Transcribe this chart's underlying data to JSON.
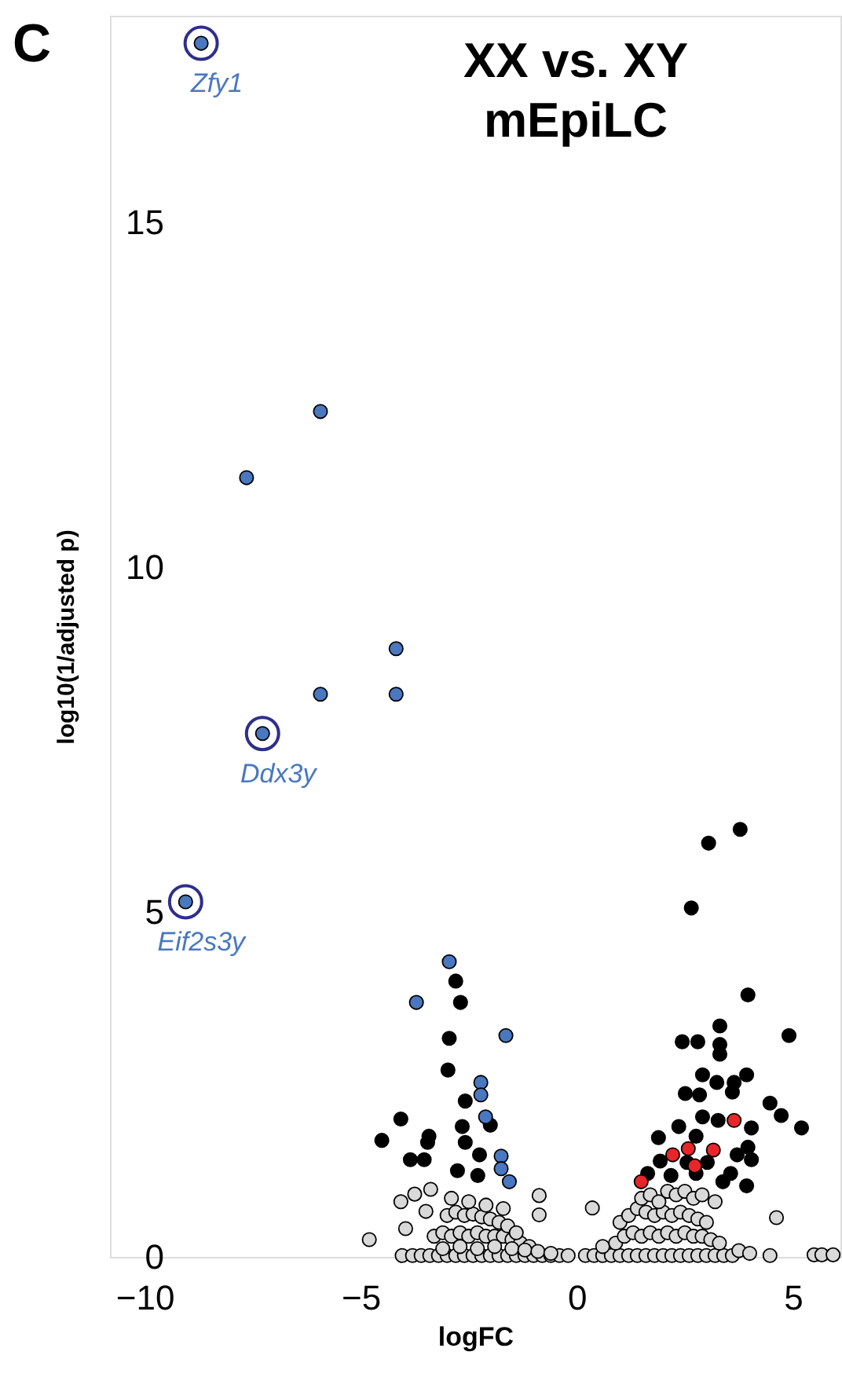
{
  "chart_data": {
    "type": "scatter",
    "title": "XX vs. XY\nmEpiLC",
    "xlabel": "logFC",
    "ylabel": "log10(1/adjusted p)",
    "xlim": [
      -10.8,
      6.1
    ],
    "ylim": [
      0,
      18
    ],
    "xticks": [
      -10,
      -5,
      0,
      5
    ],
    "yticks": [
      0,
      5,
      10,
      15
    ],
    "grid": false,
    "marker": "circle",
    "annotations": [
      "C",
      {
        "text": "Zfy1",
        "x": -8.69,
        "y": 17.6
      },
      {
        "text": "Ddx3y",
        "x": -7.27,
        "y": 7.59
      },
      {
        "text": "Eif2s3y",
        "x": -9.05,
        "y": 5.15
      }
    ],
    "series": [
      {
        "color": "#d9d9d9",
        "x": [
          -4.8,
          -4.07,
          -3.75,
          -3.49,
          -3.96,
          -3.38,
          -0.87,
          -0.87,
          -4.04,
          -3.8,
          -3.6,
          -3.4,
          -3.2,
          -3.0,
          -2.8,
          -2.6,
          -2.4,
          -2.2,
          -2.0,
          -1.8,
          -1.6,
          -1.4,
          -1.2,
          -1.0,
          -0.8,
          -0.6,
          -0.4,
          -0.2,
          -3.3,
          -3.1,
          -2.9,
          -2.7,
          -2.5,
          -2.3,
          -2.1,
          -1.9,
          -1.7,
          -1.5,
          -1.3,
          -1.1,
          -3.0,
          -2.8,
          -2.6,
          -2.4,
          -2.2,
          -2.0,
          -1.8,
          -1.6,
          -1.4,
          -2.9,
          -2.5,
          -2.1,
          -1.7,
          -3.1,
          -2.7,
          -2.3,
          -1.9,
          -1.5,
          -1.2,
          -0.9,
          -0.6,
          0.2,
          0.4,
          0.6,
          0.8,
          1.0,
          1.2,
          1.4,
          1.6,
          1.8,
          2.0,
          2.2,
          2.4,
          2.6,
          2.8,
          3.0,
          3.2,
          3.4,
          3.6,
          0.36,
          0.6,
          0.9,
          1.1,
          1.3,
          1.5,
          1.7,
          1.9,
          2.1,
          2.3,
          2.5,
          2.7,
          2.9,
          3.1,
          3.3,
          1.0,
          1.2,
          1.4,
          1.6,
          1.8,
          2.0,
          2.2,
          2.4,
          2.6,
          2.8,
          3.0,
          1.5,
          1.7,
          1.9,
          2.1,
          2.3,
          2.5,
          2.7,
          2.9,
          3.2,
          4.62,
          3.75,
          4.0,
          4.47,
          5.49,
          5.67,
          5.93
        ],
        "values": [
          0.25,
          0.8,
          0.91,
          0.66,
          0.41,
          0.98,
          0.89,
          0.61,
          0.02,
          0.02,
          0.02,
          0.02,
          0.02,
          0.02,
          0.02,
          0.02,
          0.02,
          0.02,
          0.02,
          0.02,
          0.02,
          0.02,
          0.02,
          0.02,
          0.02,
          0.02,
          0.02,
          0.02,
          0.3,
          0.35,
          0.3,
          0.35,
          0.3,
          0.35,
          0.3,
          0.3,
          0.3,
          0.25,
          0.2,
          0.15,
          0.6,
          0.65,
          0.6,
          0.62,
          0.58,
          0.55,
          0.5,
          0.45,
          0.35,
          0.85,
          0.8,
          0.75,
          0.7,
          0.12,
          0.15,
          0.12,
          0.15,
          0.12,
          0.1,
          0.08,
          0.05,
          0.02,
          0.02,
          0.02,
          0.02,
          0.02,
          0.02,
          0.02,
          0.02,
          0.02,
          0.02,
          0.02,
          0.02,
          0.02,
          0.02,
          0.02,
          0.02,
          0.02,
          0.02,
          0.71,
          0.15,
          0.2,
          0.3,
          0.35,
          0.3,
          0.35,
          0.3,
          0.35,
          0.3,
          0.35,
          0.3,
          0.3,
          0.25,
          0.2,
          0.5,
          0.6,
          0.7,
          0.65,
          0.6,
          0.65,
          0.6,
          0.65,
          0.6,
          0.55,
          0.5,
          0.85,
          0.9,
          0.8,
          0.95,
          0.9,
          0.95,
          0.85,
          0.9,
          0.8,
          0.57,
          0.09,
          0.05,
          0.02,
          0.03,
          0.03,
          0.03
        ]
      },
      {
        "color": "#000000",
        "x": [
          -2.8,
          -2.69,
          -2.95,
          -2.98,
          -2.58,
          -4.07,
          -2.65,
          -2.0,
          -4.51,
          -3.42,
          -3.45,
          -2.58,
          -3.85,
          -3.53,
          -2.25,
          -2.76,
          -2.29,
          3.78,
          3.05,
          2.65,
          3.96,
          4.91,
          3.31,
          2.44,
          2.8,
          3.31,
          3.31,
          2.91,
          3.93,
          3.24,
          3.64,
          2.51,
          2.84,
          3.6,
          4.47,
          4.73,
          5.2,
          4.04,
          1.89,
          2.36,
          2.91,
          3.27,
          1.93,
          3.96,
          4.04,
          3.71,
          3.56,
          3.38,
          3.93,
          1.64,
          2.18,
          2.76,
          3.02,
          2.55,
          2.76
        ],
        "values": [
          4.0,
          3.69,
          3.17,
          2.71,
          2.26,
          2.0,
          1.89,
          1.91,
          1.69,
          1.75,
          1.66,
          1.66,
          1.41,
          1.41,
          1.48,
          1.25,
          1.18,
          6.2,
          6.0,
          5.06,
          3.8,
          3.21,
          3.35,
          3.12,
          3.12,
          3.08,
          2.94,
          2.64,
          2.64,
          2.53,
          2.53,
          2.37,
          2.35,
          2.39,
          2.23,
          2.05,
          1.87,
          1.87,
          1.73,
          1.89,
          2.03,
          1.98,
          1.39,
          1.59,
          1.41,
          1.48,
          1.21,
          1.09,
          1.03,
          1.21,
          1.18,
          1.21,
          1.37,
          1.37,
          1.75
        ]
      },
      {
        "color": "#e8262a",
        "x": [
          3.64,
          2.22,
          2.58,
          3.16,
          2.73,
          1.49
        ],
        "values": [
          1.98,
          1.48,
          1.57,
          1.55,
          1.32,
          1.09
        ]
      },
      {
        "color": "#4a78c0",
        "x": [
          -8.69,
          -7.27,
          -9.05,
          -5.93,
          -7.64,
          -4.18,
          -5.93,
          -4.18,
          -2.95,
          -3.71,
          -1.64,
          -2.22,
          -2.22,
          -2.11,
          -1.75,
          -1.75,
          -1.56
        ],
        "values": [
          17.6,
          7.59,
          5.15,
          12.26,
          11.3,
          8.82,
          8.16,
          8.16,
          4.28,
          3.69,
          3.21,
          2.53,
          2.35,
          2.03,
          1.46,
          1.28,
          1.09
        ]
      }
    ]
  }
}
